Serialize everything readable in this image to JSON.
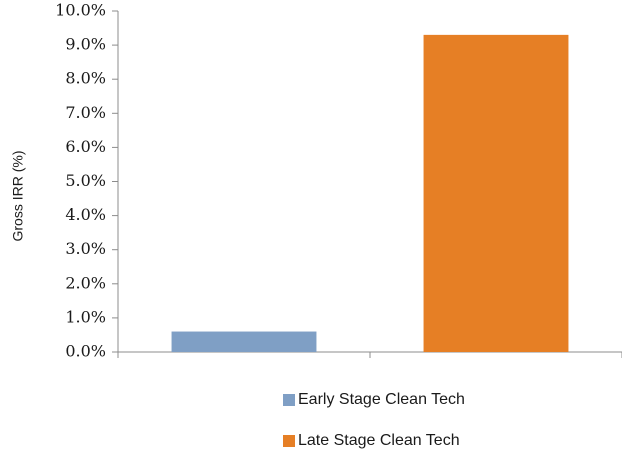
{
  "chart_data": {
    "type": "bar",
    "categories": [
      "Early Stage Clean Tech",
      "Late Stage Clean Tech"
    ],
    "values": [
      0.6,
      9.3
    ],
    "colors": [
      "#7f9fc5",
      "#e67f25"
    ],
    "xlabel": "",
    "ylabel": "Gross IRR (%)",
    "ylim": [
      0,
      10
    ],
    "yticks": [
      "0.0%",
      "1.0%",
      "2.0%",
      "3.0%",
      "4.0%",
      "5.0%",
      "6.0%",
      "7.0%",
      "8.0%",
      "9.0%",
      "10.0%"
    ],
    "grid": false,
    "legend": {
      "placement": "bottom",
      "entries": [
        "Early Stage Clean Tech",
        "Late Stage Clean Tech"
      ]
    }
  }
}
